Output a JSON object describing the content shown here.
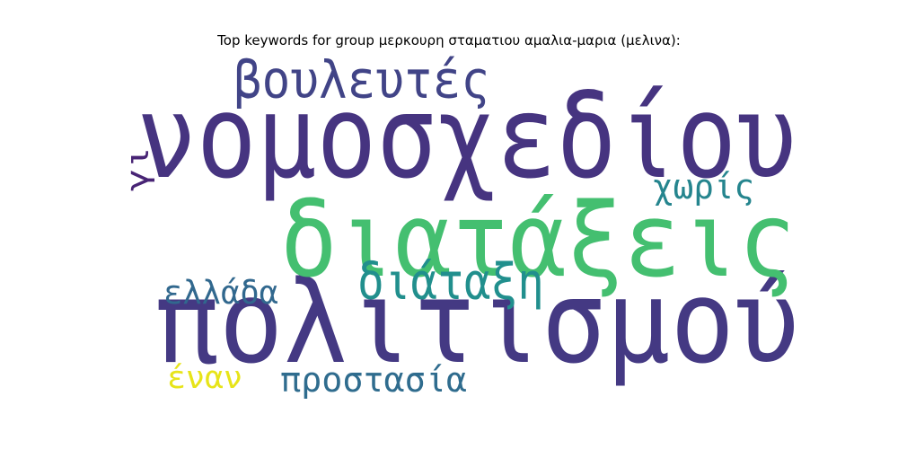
{
  "chart_data": {
    "type": "wordcloud",
    "title": "Top keywords for group μερκουρη σταματιου αμαλια-μαρια (μελινα):",
    "words": [
      {
        "text": "νομοσχεδίου",
        "color": "#463480"
      },
      {
        "text": "πολιτισμού",
        "color": "#443983"
      },
      {
        "text": "διατάξεις",
        "color": "#44bf70"
      },
      {
        "text": "βουλευτές",
        "color": "#414487"
      },
      {
        "text": "διάταξη",
        "color": "#218f8d"
      },
      {
        "text": "χωρίς",
        "color": "#25858e"
      },
      {
        "text": "ελλάδα",
        "color": "#31688e"
      },
      {
        "text": "προστασία",
        "color": "#2f6c8e"
      },
      {
        "text": "έναν",
        "color": "#e7e419"
      },
      {
        "text": "γι",
        "color": "#482475"
      }
    ]
  }
}
